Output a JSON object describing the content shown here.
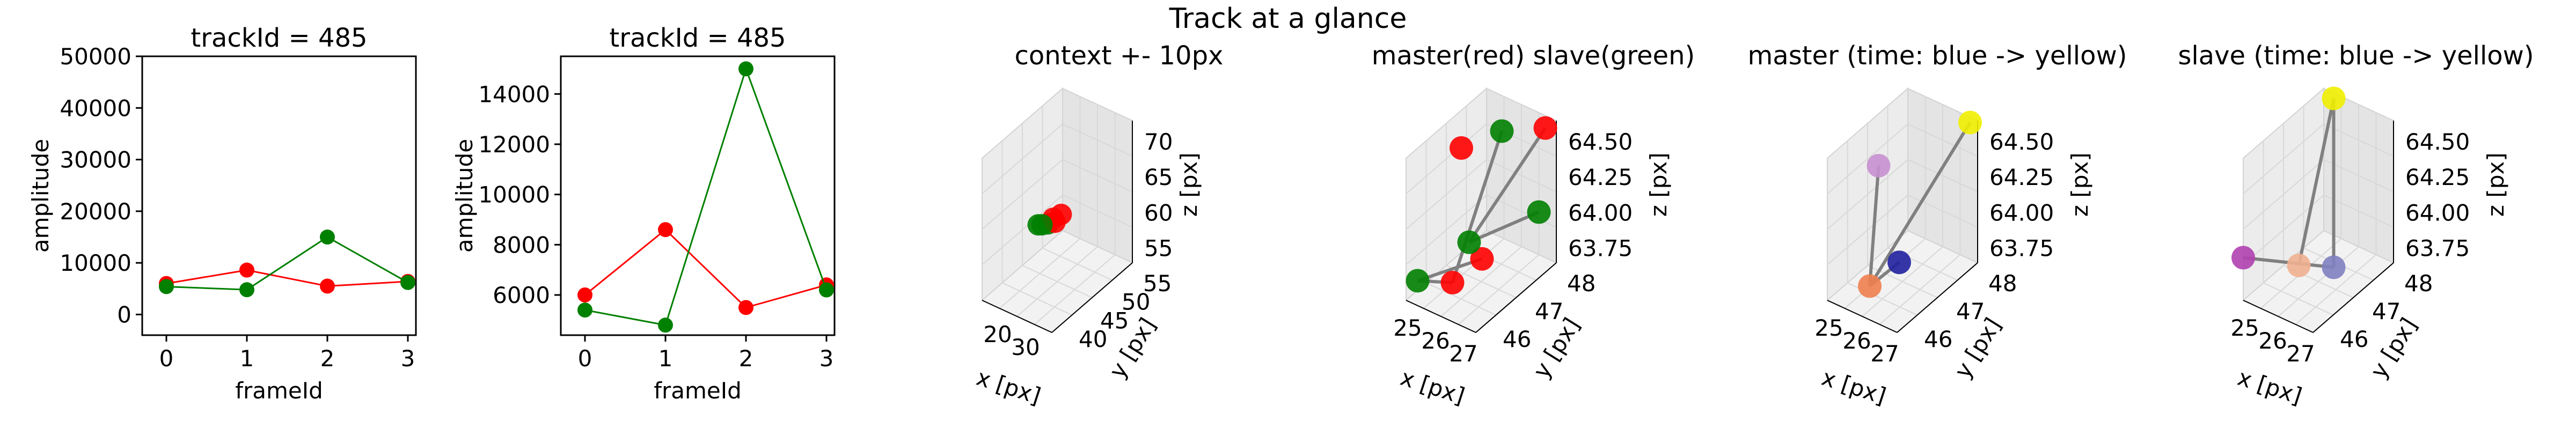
{
  "figure": {
    "suptitle": "Track at a glance"
  },
  "colors": {
    "master": "#ff0000",
    "slave": "#008000",
    "connector": "#808080",
    "pane": "#ebebeb",
    "grid": "#d3d3d3"
  },
  "chart_data": [
    {
      "type": "line",
      "title": "trackId = 485",
      "xlabel": "frameId",
      "ylabel": "amplitude",
      "xlim": [
        -0.3,
        3.1
      ],
      "ylim": [
        -4000,
        50000
      ],
      "xticks": [
        "0",
        "1",
        "2",
        "3"
      ],
      "yticks": [
        "0",
        "10000",
        "20000",
        "30000",
        "40000",
        "50000"
      ],
      "x": [
        0,
        1,
        2,
        3
      ],
      "series": [
        {
          "color": "#ff0000",
          "values": [
            6000,
            8600,
            5500,
            6400
          ]
        },
        {
          "color": "#008000",
          "values": [
            5400,
            4800,
            15000,
            6200
          ]
        }
      ]
    },
    {
      "type": "line",
      "title": "trackId = 485",
      "xlabel": "frameId",
      "ylabel": "amplitude",
      "xlim": [
        -0.3,
        3.1
      ],
      "ylim": [
        4400,
        15500
      ],
      "xticks": [
        "0",
        "1",
        "2",
        "3"
      ],
      "yticks": [
        "6000",
        "8000",
        "10000",
        "12000",
        "14000"
      ],
      "x": [
        0,
        1,
        2,
        3
      ],
      "series": [
        {
          "color": "#ff0000",
          "values": [
            6000,
            8600,
            5500,
            6400
          ]
        },
        {
          "color": "#008000",
          "values": [
            5400,
            4800,
            15000,
            6200
          ]
        }
      ]
    },
    {
      "type": "scatter",
      "title": "context +- 10px",
      "xlabel": "x [px]",
      "ylabel": "y [px]",
      "zlabel": "z [px]",
      "xticks": [
        "20",
        "30"
      ],
      "yticks": [
        "40",
        "45",
        "50",
        "55"
      ],
      "zticks": [
        "55",
        "60",
        "65",
        "70"
      ],
      "points": [
        {
          "color": "#008000"
        },
        {
          "color": "#008000"
        },
        {
          "color": "#ff0000"
        },
        {
          "color": "#ff0000"
        },
        {
          "color": "#ff0000"
        },
        {
          "color": "#008000"
        }
      ]
    },
    {
      "type": "scatter",
      "title": "master(red) slave(green)",
      "xlabel": "x [px]",
      "ylabel": "y [px]",
      "zlabel": "z [px]",
      "xticks": [
        "25",
        "26",
        "27"
      ],
      "yticks": [
        "46",
        "47",
        "48"
      ],
      "zticks": [
        "63.75",
        "64.00",
        "64.25",
        "64.50"
      ],
      "points": [
        {
          "color": "#ff0000"
        },
        {
          "color": "#ff0000"
        },
        {
          "color": "#ff0000"
        },
        {
          "color": "#ff0000"
        },
        {
          "color": "#008000"
        },
        {
          "color": "#008000"
        },
        {
          "color": "#008000"
        },
        {
          "color": "#008000"
        }
      ]
    },
    {
      "type": "scatter",
      "title": "master (time: blue -> yellow)",
      "xlabel": "x [px]",
      "ylabel": "y [px]",
      "zlabel": "z [px]",
      "xticks": [
        "25",
        "26",
        "27"
      ],
      "yticks": [
        "46",
        "47",
        "48"
      ],
      "zticks": [
        "63.75",
        "64.00",
        "64.25",
        "64.50"
      ],
      "points": [
        {
          "color": "#c890d0"
        },
        {
          "color": "#f08050"
        },
        {
          "color": "#2020a0"
        },
        {
          "color": "#f0f000"
        }
      ]
    },
    {
      "type": "scatter",
      "title": "slave (time: blue -> yellow)",
      "xlabel": "x [px]",
      "ylabel": "y [px]",
      "zlabel": "z [px]",
      "xticks": [
        "25",
        "26",
        "27"
      ],
      "yticks": [
        "46",
        "47",
        "48"
      ],
      "zticks": [
        "63.75",
        "64.00",
        "64.25",
        "64.50"
      ],
      "points": [
        {
          "color": "#b040b0"
        },
        {
          "color": "#f0b090"
        },
        {
          "color": "#8080c0"
        },
        {
          "color": "#f0f000"
        }
      ]
    }
  ]
}
